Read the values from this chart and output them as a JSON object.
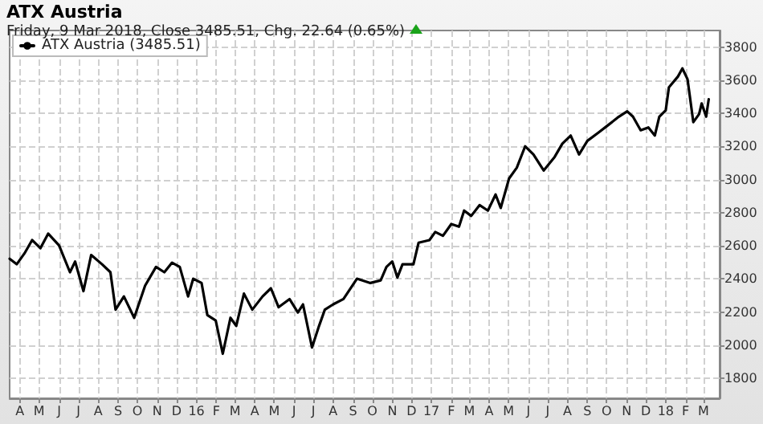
{
  "chart_data": {
    "type": "line",
    "title": "ATX Austria",
    "subtitle": "Friday, 9 Mar 2018, Close 3485.51, Chg. 22.64 (0.65%)",
    "legend": "top left",
    "grid": true,
    "marker": "none",
    "line_style": "solid",
    "xlim": [
      "2015-03-16",
      "2018-03-26"
    ],
    "ylim": [
      1680,
      3900
    ],
    "yticks": [
      1800,
      2000,
      2200,
      2400,
      2600,
      2800,
      3000,
      3200,
      3400,
      3600,
      3800
    ],
    "xticks": [
      {
        "value": "2015-04",
        "label": "A"
      },
      {
        "value": "2015-05",
        "label": "M"
      },
      {
        "value": "2015-06",
        "label": "J"
      },
      {
        "value": "2015-07",
        "label": "J"
      },
      {
        "value": "2015-08",
        "label": "A"
      },
      {
        "value": "2015-09",
        "label": "S"
      },
      {
        "value": "2015-10",
        "label": "O"
      },
      {
        "value": "2015-11",
        "label": "N"
      },
      {
        "value": "2015-12",
        "label": "D"
      },
      {
        "value": "2016-01",
        "label": "16"
      },
      {
        "value": "2016-02",
        "label": "F"
      },
      {
        "value": "2016-03",
        "label": "M"
      },
      {
        "value": "2016-04",
        "label": "A"
      },
      {
        "value": "2016-05",
        "label": "M"
      },
      {
        "value": "2016-06",
        "label": "J"
      },
      {
        "value": "2016-07",
        "label": "J"
      },
      {
        "value": "2016-08",
        "label": "A"
      },
      {
        "value": "2016-09",
        "label": "S"
      },
      {
        "value": "2016-10",
        "label": "O"
      },
      {
        "value": "2016-11",
        "label": "N"
      },
      {
        "value": "2016-12",
        "label": "D"
      },
      {
        "value": "2017-01",
        "label": "17"
      },
      {
        "value": "2017-02",
        "label": "F"
      },
      {
        "value": "2017-03",
        "label": "M"
      },
      {
        "value": "2017-04",
        "label": "A"
      },
      {
        "value": "2017-05",
        "label": "M"
      },
      {
        "value": "2017-06",
        "label": "J"
      },
      {
        "value": "2017-07",
        "label": "J"
      },
      {
        "value": "2017-08",
        "label": "A"
      },
      {
        "value": "2017-09",
        "label": "S"
      },
      {
        "value": "2017-10",
        "label": "O"
      },
      {
        "value": "2017-11",
        "label": "N"
      },
      {
        "value": "2017-12",
        "label": "D"
      },
      {
        "value": "2018-01",
        "label": "18"
      },
      {
        "value": "2018-02",
        "label": "F"
      },
      {
        "value": "2018-03",
        "label": "M"
      }
    ],
    "series": [
      {
        "name": "ATX Austria (3485.51)",
        "color": "#000000",
        "x": [
          "2015-03-16",
          "2015-03-27",
          "2015-04-08",
          "2015-04-20",
          "2015-05-03",
          "2015-05-15",
          "2015-06-01",
          "2015-06-18",
          "2015-06-26",
          "2015-07-09",
          "2015-07-21",
          "2015-08-07",
          "2015-08-20",
          "2015-08-28",
          "2015-09-10",
          "2015-09-26",
          "2015-10-13",
          "2015-10-30",
          "2015-11-12",
          "2015-11-24",
          "2015-12-06",
          "2015-12-19",
          "2015-12-27",
          "2016-01-09",
          "2016-01-18",
          "2016-01-31",
          "2016-02-11",
          "2016-02-23",
          "2016-03-03",
          "2016-03-15",
          "2016-03-28",
          "2016-04-13",
          "2016-04-26",
          "2016-05-08",
          "2016-05-25",
          "2016-06-07",
          "2016-06-15",
          "2016-06-29",
          "2016-07-10",
          "2016-07-19",
          "2016-08-01",
          "2016-08-17",
          "2016-09-07",
          "2016-09-28",
          "2016-10-14",
          "2016-10-23",
          "2016-11-01",
          "2016-11-09",
          "2016-11-17",
          "2016-12-04",
          "2016-12-12",
          "2016-12-29",
          "2017-01-07",
          "2017-01-19",
          "2017-02-01",
          "2017-02-13",
          "2017-02-21",
          "2017-03-04",
          "2017-03-17",
          "2017-03-30",
          "2017-04-11",
          "2017-04-19",
          "2017-05-02",
          "2017-05-14",
          "2017-05-27",
          "2017-06-09",
          "2017-06-25",
          "2017-07-12",
          "2017-07-24",
          "2017-08-06",
          "2017-08-19",
          "2017-09-01",
          "2017-09-18",
          "2017-10-04",
          "2017-10-20",
          "2017-11-02",
          "2017-11-11",
          "2017-11-23",
          "2017-12-05",
          "2017-12-15",
          "2017-12-22",
          "2018-01-01",
          "2018-01-06",
          "2018-01-20",
          "2018-01-27",
          "2018-02-04",
          "2018-02-13",
          "2018-02-22",
          "2018-02-26",
          "2018-03-05",
          "2018-03-09"
        ],
        "values": [
          2522,
          2489,
          2554,
          2635,
          2586,
          2674,
          2603,
          2441,
          2506,
          2327,
          2545,
          2489,
          2441,
          2215,
          2295,
          2166,
          2360,
          2473,
          2441,
          2499,
          2473,
          2295,
          2402,
          2376,
          2182,
          2150,
          1949,
          2166,
          2117,
          2312,
          2215,
          2295,
          2344,
          2230,
          2279,
          2198,
          2247,
          1987,
          2117,
          2215,
          2247,
          2279,
          2402,
          2376,
          2392,
          2473,
          2506,
          2409,
          2489,
          2489,
          2619,
          2635,
          2684,
          2661,
          2732,
          2716,
          2813,
          2781,
          2846,
          2813,
          2910,
          2829,
          3007,
          3072,
          3201,
          3152,
          3055,
          3137,
          3217,
          3266,
          3152,
          3234,
          3283,
          3331,
          3380,
          3412,
          3380,
          3298,
          3315,
          3266,
          3380,
          3418,
          3557,
          3622,
          3671,
          3606,
          3347,
          3395,
          3460,
          3380,
          3485
        ]
      }
    ]
  }
}
